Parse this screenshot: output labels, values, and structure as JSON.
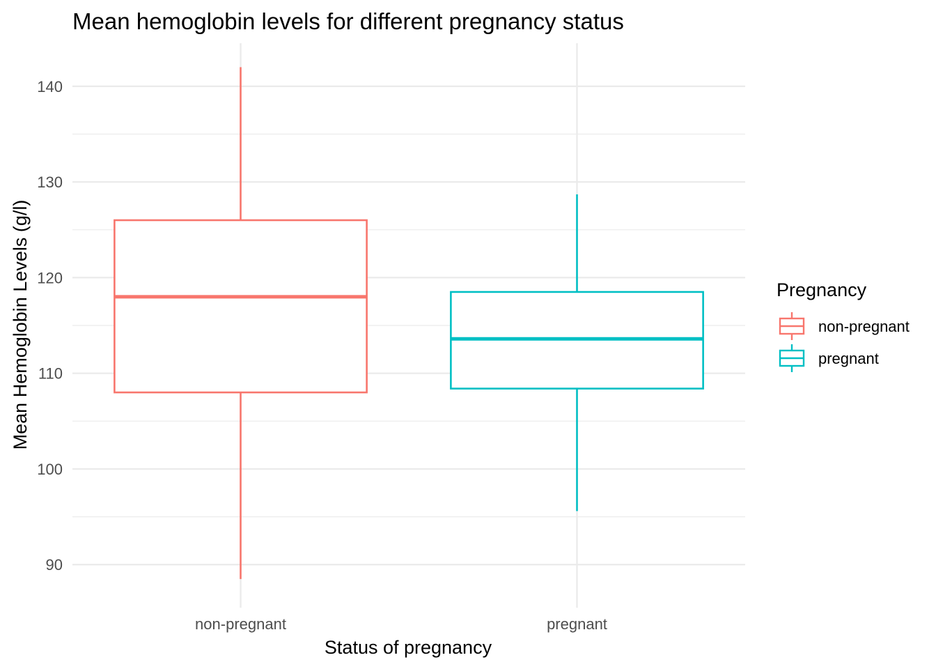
{
  "chart_data": {
    "type": "boxplot",
    "title": "Mean hemoglobin levels for different pregnancy status",
    "xlabel": "Status of pregnancy",
    "ylabel": "Mean Hemoglobin Levels (g/l)",
    "categories": [
      "non-pregnant",
      "pregnant"
    ],
    "ylim": [
      85.5,
      144.5
    ],
    "yticks": [
      90,
      100,
      110,
      120,
      130,
      140
    ],
    "ytick_labels": [
      "90",
      "100",
      "110",
      "120",
      "130",
      "140"
    ],
    "grid": true,
    "legend": {
      "title": "Pregnancy",
      "position": "right",
      "entries": [
        "non-pregnant",
        "pregnant"
      ]
    },
    "series": [
      {
        "name": "non-pregnant",
        "color": "#F8766D",
        "min": 88.5,
        "q1": 108.0,
        "median": 118.0,
        "q3": 126.0,
        "max": 142.0
      },
      {
        "name": "pregnant",
        "color": "#00BFC4",
        "min": 95.6,
        "q1": 108.4,
        "median": 113.6,
        "q3": 118.5,
        "max": 128.7
      }
    ]
  }
}
